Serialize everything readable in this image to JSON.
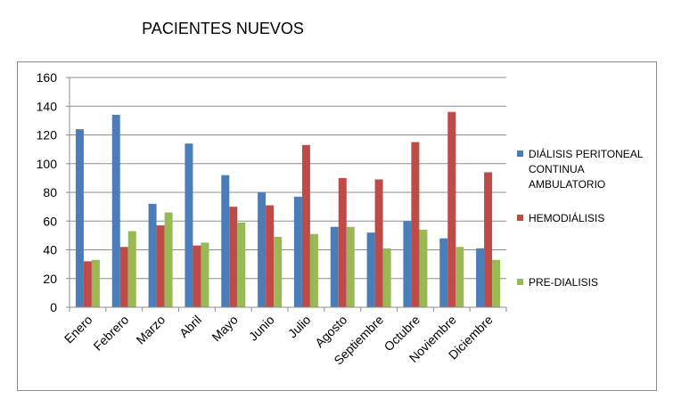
{
  "chart_data": {
    "type": "bar",
    "title": "PACIENTES NUEVOS",
    "categories": [
      "Enero",
      "Febrero",
      "Marzo",
      "Abril",
      "Mayo",
      "Junio",
      "Julio",
      "Agosto",
      "Septiembre",
      "Octubre",
      "Noviembre",
      "Diciembre"
    ],
    "series": [
      {
        "name": "DIÁLISIS PERITONEAL CONTINUA AMBULATORIO",
        "color": "#4a7ebb",
        "values": [
          124,
          134,
          72,
          114,
          92,
          80,
          77,
          56,
          52,
          60,
          48,
          41
        ]
      },
      {
        "name": "HEMODIÁLISIS",
        "color": "#be4b48",
        "values": [
          32,
          42,
          57,
          43,
          70,
          71,
          113,
          90,
          89,
          115,
          136,
          94
        ]
      },
      {
        "name": "PRE-DIALISIS",
        "color": "#98b954",
        "values": [
          33,
          53,
          66,
          45,
          59,
          49,
          51,
          56,
          41,
          54,
          42,
          33
        ]
      }
    ],
    "yticks": [
      "0",
      "20",
      "40",
      "60",
      "80",
      "100",
      "120",
      "140",
      "160"
    ],
    "ylim": [
      0,
      160
    ],
    "grid": true,
    "legend": "right"
  }
}
